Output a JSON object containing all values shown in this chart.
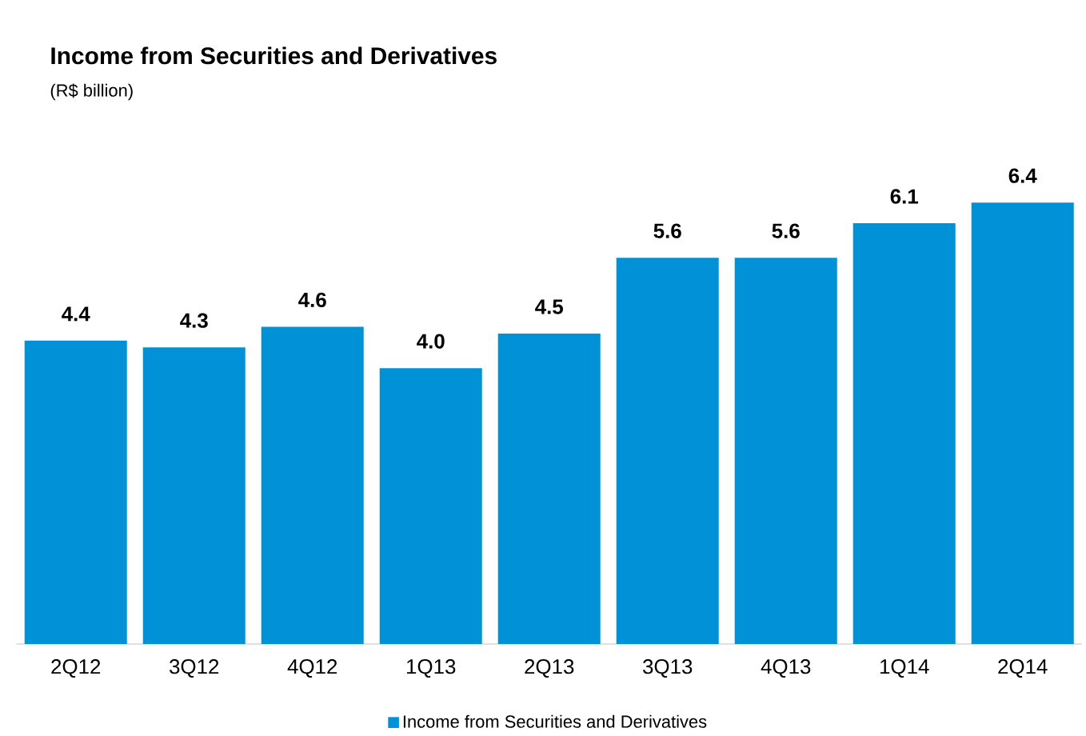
{
  "chart_data": {
    "type": "bar",
    "title": "Income from Securities and Derivatives",
    "subtitle": "(R$ billion)",
    "categories": [
      "2Q12",
      "3Q12",
      "4Q12",
      "1Q13",
      "2Q13",
      "3Q13",
      "4Q13",
      "1Q14",
      "2Q14"
    ],
    "series": [
      {
        "name": "Income from Securities and Derivatives",
        "color": "#0091d6",
        "values": [
          4.4,
          4.3,
          4.6,
          4.0,
          4.5,
          5.6,
          5.6,
          6.1,
          6.4
        ],
        "value_labels": [
          "4.4",
          "4.3",
          "4.6",
          "4.0",
          "4.5",
          "5.6",
          "5.6",
          "6.1",
          "6.4"
        ]
      }
    ],
    "legend": "bottom",
    "grid": false
  }
}
